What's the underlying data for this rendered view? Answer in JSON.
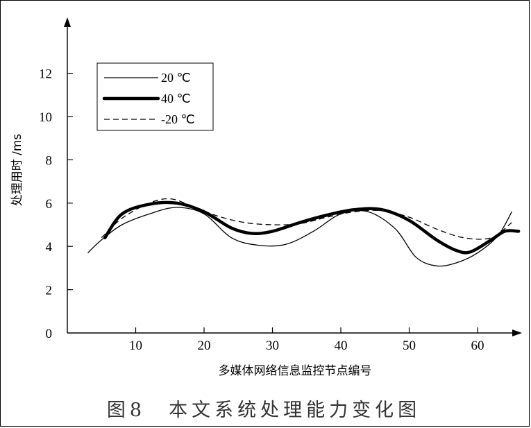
{
  "caption": "图8　本文系统处理能力变化图",
  "chart_data": {
    "type": "line",
    "title": "",
    "xlabel": "多媒体网络信息监控节点编号",
    "ylabel": "处理用时 /ms",
    "xlim": [
      0,
      66
    ],
    "ylim": [
      0,
      14
    ],
    "x_ticks": [
      10,
      20,
      30,
      40,
      50,
      60
    ],
    "y_ticks": [
      0,
      2,
      4,
      6,
      8,
      10,
      12
    ],
    "grid": false,
    "legend_position": "top-left",
    "series": [
      {
        "name": "20 ℃",
        "style": "thin",
        "x": [
          3,
          5,
          8,
          12,
          16,
          20,
          24,
          28,
          32,
          36,
          40,
          44,
          48,
          51,
          54,
          57,
          60,
          63,
          65
        ],
        "y": [
          3.7,
          4.3,
          5.0,
          5.5,
          5.8,
          5.5,
          4.4,
          4.05,
          4.1,
          4.7,
          5.5,
          5.6,
          4.8,
          3.5,
          3.1,
          3.25,
          3.7,
          4.5,
          5.6
        ]
      },
      {
        "name": "40 ℃",
        "style": "thick",
        "x": [
          5.5,
          8,
          12,
          16,
          20,
          24,
          27,
          30,
          34,
          38,
          42,
          46,
          50,
          54,
          57,
          59,
          62,
          64,
          66
        ],
        "y": [
          4.4,
          5.5,
          5.95,
          6.0,
          5.6,
          4.85,
          4.6,
          4.7,
          5.1,
          5.45,
          5.7,
          5.7,
          5.2,
          4.3,
          3.8,
          3.75,
          4.3,
          4.7,
          4.7
        ]
      },
      {
        "name": "-20 ℃",
        "style": "dashed",
        "x": [
          5,
          8,
          12,
          15,
          18,
          22,
          26,
          30,
          34,
          38,
          42,
          46,
          50,
          54,
          58,
          62,
          65
        ],
        "y": [
          4.4,
          5.3,
          6.0,
          6.2,
          5.9,
          5.4,
          5.1,
          5.0,
          5.05,
          5.35,
          5.6,
          5.65,
          5.35,
          4.8,
          4.4,
          4.4,
          5.1
        ]
      }
    ]
  }
}
